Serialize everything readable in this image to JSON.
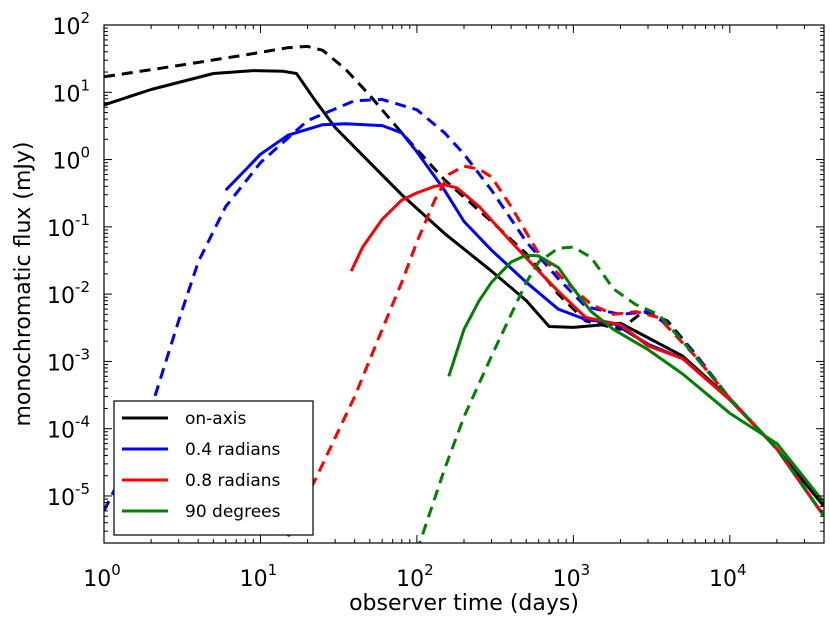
{
  "chart_data": {
    "type": "line",
    "xlabel": "observer time (days)",
    "ylabel": "monochromatic flux (mJy)",
    "xscale": "log",
    "yscale": "log",
    "xlim": [
      1,
      40000
    ],
    "ylim": [
      2e-06,
      100
    ],
    "x_ticks": [
      {
        "base": "10",
        "exp": "0",
        "value": 1
      },
      {
        "base": "10",
        "exp": "1",
        "value": 10
      },
      {
        "base": "10",
        "exp": "2",
        "value": 100
      },
      {
        "base": "10",
        "exp": "3",
        "value": 1000
      },
      {
        "base": "10",
        "exp": "4",
        "value": 10000
      }
    ],
    "y_ticks": [
      {
        "base": "10",
        "exp": "-5",
        "value": 1e-05
      },
      {
        "base": "10",
        "exp": "-4",
        "value": 0.0001
      },
      {
        "base": "10",
        "exp": "-3",
        "value": 0.001
      },
      {
        "base": "10",
        "exp": "-2",
        "value": 0.01
      },
      {
        "base": "10",
        "exp": "-1",
        "value": 0.1
      },
      {
        "base": "10",
        "exp": "0",
        "value": 1
      },
      {
        "base": "10",
        "exp": "1",
        "value": 10
      },
      {
        "base": "10",
        "exp": "2",
        "value": 100
      }
    ],
    "grid": false,
    "legend": {
      "position": "bottom-left",
      "entries": [
        {
          "label": "on-axis",
          "color": "#000000"
        },
        {
          "label": "0.4 radians",
          "color": "#0000ff"
        },
        {
          "label": "0.8 radians",
          "color": "#ff0000"
        },
        {
          "label": "90 degrees",
          "color": "#008000"
        }
      ]
    },
    "series": [
      {
        "name": "on-axis",
        "color": "#000000",
        "style": "solid",
        "points": [
          [
            1,
            6.5
          ],
          [
            2,
            11
          ],
          [
            5,
            19
          ],
          [
            9,
            21
          ],
          [
            14,
            20.5
          ],
          [
            17,
            19
          ],
          [
            22,
            8
          ],
          [
            30,
            3
          ],
          [
            50,
            0.9
          ],
          [
            80,
            0.3
          ],
          [
            150,
            0.08
          ],
          [
            300,
            0.022
          ],
          [
            500,
            0.008
          ],
          [
            700,
            0.0033
          ],
          [
            1000,
            0.0032
          ],
          [
            2000,
            0.0037
          ],
          [
            5000,
            0.0012
          ],
          [
            10000,
            0.00028
          ],
          [
            20000,
            5e-05
          ],
          [
            40000,
            7e-06
          ]
        ]
      },
      {
        "name": "on-axis",
        "color": "#000000",
        "style": "dashed",
        "points": [
          [
            1,
            17
          ],
          [
            3,
            25
          ],
          [
            8,
            36
          ],
          [
            15,
            46
          ],
          [
            20,
            48
          ],
          [
            25,
            42
          ],
          [
            35,
            22
          ],
          [
            50,
            9
          ],
          [
            80,
            2.5
          ],
          [
            150,
            0.5
          ],
          [
            300,
            0.12
          ],
          [
            500,
            0.04
          ],
          [
            800,
            0.01
          ],
          [
            1200,
            0.004
          ],
          [
            2000,
            0.003
          ],
          [
            2800,
            0.0055
          ],
          [
            4000,
            0.004
          ],
          [
            6000,
            0.0013
          ],
          [
            10000,
            0.00028
          ],
          [
            20000,
            5e-05
          ],
          [
            40000,
            5e-06
          ]
        ]
      },
      {
        "name": "0.4 radians",
        "color": "#0000ff",
        "style": "solid",
        "points": [
          [
            6,
            0.35
          ],
          [
            8,
            0.7
          ],
          [
            10,
            1.2
          ],
          [
            15,
            2.3
          ],
          [
            25,
            3.3
          ],
          [
            35,
            3.4
          ],
          [
            60,
            3.2
          ],
          [
            80,
            2.5
          ],
          [
            100,
            1.3
          ],
          [
            150,
            0.35
          ],
          [
            200,
            0.12
          ],
          [
            300,
            0.045
          ],
          [
            500,
            0.015
          ],
          [
            800,
            0.006
          ],
          [
            1200,
            0.0042
          ],
          [
            1800,
            0.0037
          ],
          [
            3000,
            0.0018
          ],
          [
            5000,
            0.0011
          ],
          [
            10000,
            0.00027
          ],
          [
            20000,
            5e-05
          ],
          [
            40000,
            5e-06
          ]
        ]
      },
      {
        "name": "0.4 radians",
        "color": "#0000ff",
        "style": "dashed",
        "points": [
          [
            1,
            6e-06
          ],
          [
            1.5,
            4e-05
          ],
          [
            2,
            0.0002
          ],
          [
            3,
            0.004
          ],
          [
            4,
            0.03
          ],
          [
            6,
            0.2
          ],
          [
            10,
            0.9
          ],
          [
            20,
            3.8
          ],
          [
            40,
            7.5
          ],
          [
            60,
            7.8
          ],
          [
            100,
            5.5
          ],
          [
            150,
            2.5
          ],
          [
            200,
            1.2
          ],
          [
            300,
            0.35
          ],
          [
            500,
            0.06
          ],
          [
            800,
            0.017
          ],
          [
            1200,
            0.0065
          ],
          [
            2000,
            0.005
          ],
          [
            3000,
            0.0055
          ],
          [
            4000,
            0.0035
          ],
          [
            6000,
            0.0013
          ],
          [
            10000,
            0.00028
          ],
          [
            20000,
            5e-05
          ],
          [
            40000,
            5e-06
          ]
        ]
      },
      {
        "name": "0.8 radians",
        "color": "#ff0000",
        "style": "solid",
        "points": [
          [
            38,
            0.022
          ],
          [
            45,
            0.05
          ],
          [
            60,
            0.13
          ],
          [
            80,
            0.25
          ],
          [
            100,
            0.32
          ],
          [
            130,
            0.4
          ],
          [
            150,
            0.42
          ],
          [
            180,
            0.38
          ],
          [
            250,
            0.2
          ],
          [
            400,
            0.06
          ],
          [
            600,
            0.022
          ],
          [
            800,
            0.011
          ],
          [
            1200,
            0.0045
          ],
          [
            2000,
            0.0035
          ],
          [
            3000,
            0.0017
          ],
          [
            5000,
            0.0011
          ],
          [
            10000,
            0.00027
          ],
          [
            20000,
            5e-05
          ],
          [
            40000,
            5e-06
          ]
        ]
      },
      {
        "name": "0.8 radians",
        "color": "#ff0000",
        "style": "dashed",
        "points": [
          [
            15,
            2.5e-06
          ],
          [
            25,
            3e-05
          ],
          [
            40,
            0.0003
          ],
          [
            60,
            0.003
          ],
          [
            80,
            0.015
          ],
          [
            100,
            0.06
          ],
          [
            130,
            0.25
          ],
          [
            160,
            0.6
          ],
          [
            200,
            0.8
          ],
          [
            250,
            0.72
          ],
          [
            300,
            0.55
          ],
          [
            400,
            0.2
          ],
          [
            600,
            0.04
          ],
          [
            900,
            0.015
          ],
          [
            1300,
            0.007
          ],
          [
            1800,
            0.005
          ],
          [
            2500,
            0.0055
          ],
          [
            3500,
            0.0045
          ],
          [
            6000,
            0.0012
          ],
          [
            10000,
            0.00028
          ],
          [
            20000,
            5e-05
          ],
          [
            40000,
            5e-06
          ]
        ]
      },
      {
        "name": "90 degrees",
        "color": "#008000",
        "style": "solid",
        "points": [
          [
            160,
            0.0006
          ],
          [
            200,
            0.003
          ],
          [
            250,
            0.008
          ],
          [
            300,
            0.015
          ],
          [
            400,
            0.03
          ],
          [
            500,
            0.038
          ],
          [
            600,
            0.037
          ],
          [
            800,
            0.025
          ],
          [
            1000,
            0.012
          ],
          [
            1300,
            0.0055
          ],
          [
            1800,
            0.003
          ],
          [
            3000,
            0.0015
          ],
          [
            5000,
            0.00065
          ],
          [
            10000,
            0.00017
          ],
          [
            20000,
            6e-05
          ],
          [
            40000,
            8e-06
          ]
        ]
      },
      {
        "name": "90 degrees",
        "color": "#008000",
        "style": "dashed",
        "points": [
          [
            100,
            1.5e-06
          ],
          [
            150,
            2.5e-05
          ],
          [
            200,
            0.00015
          ],
          [
            300,
            0.0012
          ],
          [
            400,
            0.005
          ],
          [
            500,
            0.015
          ],
          [
            600,
            0.03
          ],
          [
            800,
            0.048
          ],
          [
            1000,
            0.05
          ],
          [
            1300,
            0.035
          ],
          [
            1800,
            0.012
          ],
          [
            2500,
            0.007
          ],
          [
            3500,
            0.005
          ],
          [
            5000,
            0.002
          ],
          [
            10000,
            0.00028
          ],
          [
            20000,
            5e-05
          ],
          [
            40000,
            5e-06
          ]
        ]
      }
    ]
  }
}
